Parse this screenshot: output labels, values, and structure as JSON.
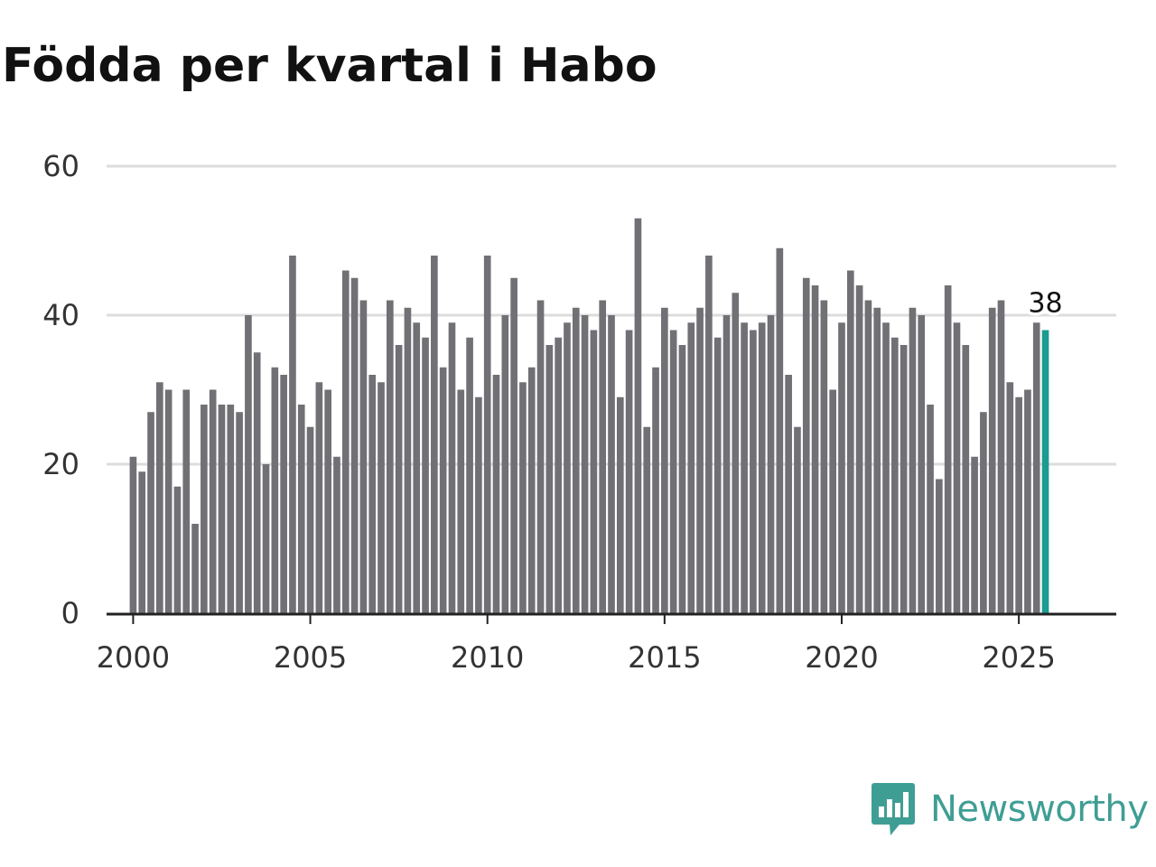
{
  "chart_data": {
    "type": "bar",
    "title": "Födda per kvartal i Habo",
    "xlabel": "",
    "ylabel": "",
    "x_start": 2000.0,
    "x_step": 0.25,
    "ylim": [
      0,
      60
    ],
    "xlim": [
      1999.25,
      2027.75
    ],
    "y_ticks": [
      0,
      20,
      40,
      60
    ],
    "x_ticks": [
      2000,
      2005,
      2010,
      2015,
      2020,
      2025
    ],
    "grid": true,
    "values": [
      21,
      19,
      27,
      31,
      30,
      17,
      30,
      12,
      28,
      30,
      28,
      28,
      27,
      40,
      35,
      20,
      33,
      32,
      48,
      28,
      25,
      31,
      30,
      21,
      46,
      45,
      42,
      32,
      31,
      42,
      36,
      41,
      39,
      37,
      48,
      33,
      39,
      30,
      37,
      29,
      48,
      32,
      40,
      45,
      31,
      33,
      42,
      36,
      37,
      39,
      41,
      40,
      38,
      42,
      40,
      29,
      38,
      53,
      25,
      33,
      41,
      38,
      36,
      39,
      41,
      48,
      37,
      40,
      43,
      39,
      38,
      39,
      40,
      49,
      32,
      25,
      45,
      44,
      42,
      30,
      39,
      46,
      44,
      42,
      41,
      39,
      37,
      36,
      41,
      40,
      28,
      18,
      44,
      39,
      36,
      21,
      27,
      41,
      42,
      31,
      29,
      30,
      39,
      38
    ],
    "highlight": {
      "value": 38,
      "label": "38"
    },
    "colors": {
      "bar": "#717075",
      "highlight": "#1a9c8f",
      "grid": "#dcdcdc",
      "axis": "#222222"
    }
  },
  "brand": {
    "name": "Newsworthy",
    "logo_icon": "newsworthy-logo-icon",
    "color": "#3f9e94"
  }
}
